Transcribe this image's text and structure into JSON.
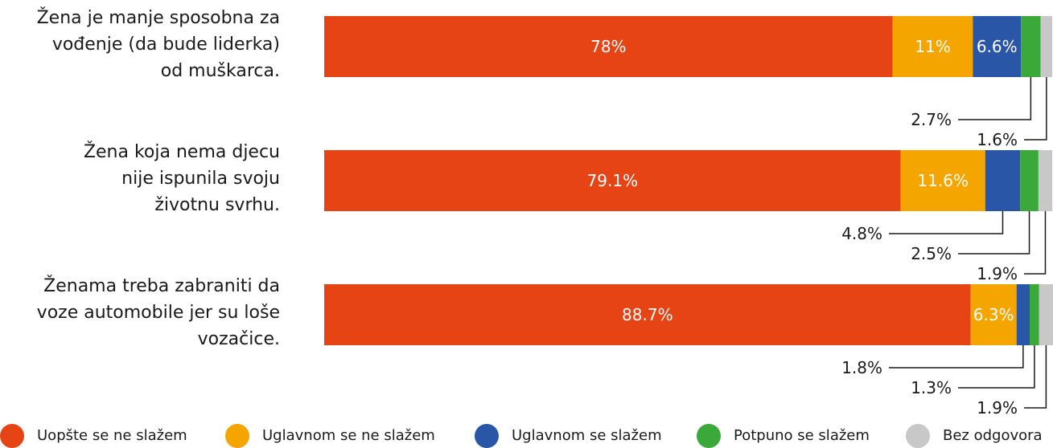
{
  "chart_data": {
    "type": "bar",
    "orientation": "horizontal",
    "stacked": true,
    "xlim": [
      0,
      100
    ],
    "unit": "%",
    "categories": [
      "Žena je manje sposobna za vođenje (da bude liderka) od muškarca.",
      "Žena koja nema djecu nije ispunila svoju životnu svrhu.",
      "Ženama treba zabraniti da voze automobile jer su loše vozačice."
    ],
    "category_lines": [
      [
        "Žena je manje sposobna za",
        "vođenje (da bude liderka)",
        "od muškarca."
      ],
      [
        "Žena koja nema djecu",
        "nije ispunila svoju",
        "životnu svrhu."
      ],
      [
        "Ženama treba zabraniti da",
        "voze automobile jer su loše",
        "vozačice."
      ]
    ],
    "series": [
      {
        "name": "Uopšte se ne slažem",
        "color": "#e64415",
        "values": [
          78,
          79.1,
          88.7
        ],
        "labels": [
          "78%",
          "79.1%",
          "88.7%"
        ]
      },
      {
        "name": "Uglavnom se ne slažem",
        "color": "#f5a500",
        "values": [
          11,
          11.6,
          6.3
        ],
        "labels": [
          "11%",
          "11.6%",
          "6.3%"
        ]
      },
      {
        "name": "Uglavnom se slažem",
        "color": "#2a56a8",
        "values": [
          6.6,
          4.8,
          1.8
        ],
        "labels": [
          "6.6%",
          "4.8%",
          "1.8%"
        ]
      },
      {
        "name": "Potpuno se slažem",
        "color": "#3aa93a",
        "values": [
          2.7,
          2.5,
          1.3
        ],
        "labels": [
          "2.7%",
          "2.5%",
          "1.3%"
        ]
      },
      {
        "name": "Bez odgovora",
        "color": "#c8c8c8",
        "values": [
          1.6,
          1.9,
          1.9
        ],
        "labels": [
          "1.6%",
          "1.9%",
          "1.9%"
        ]
      }
    ],
    "legend_position": "bottom",
    "grid": false
  }
}
